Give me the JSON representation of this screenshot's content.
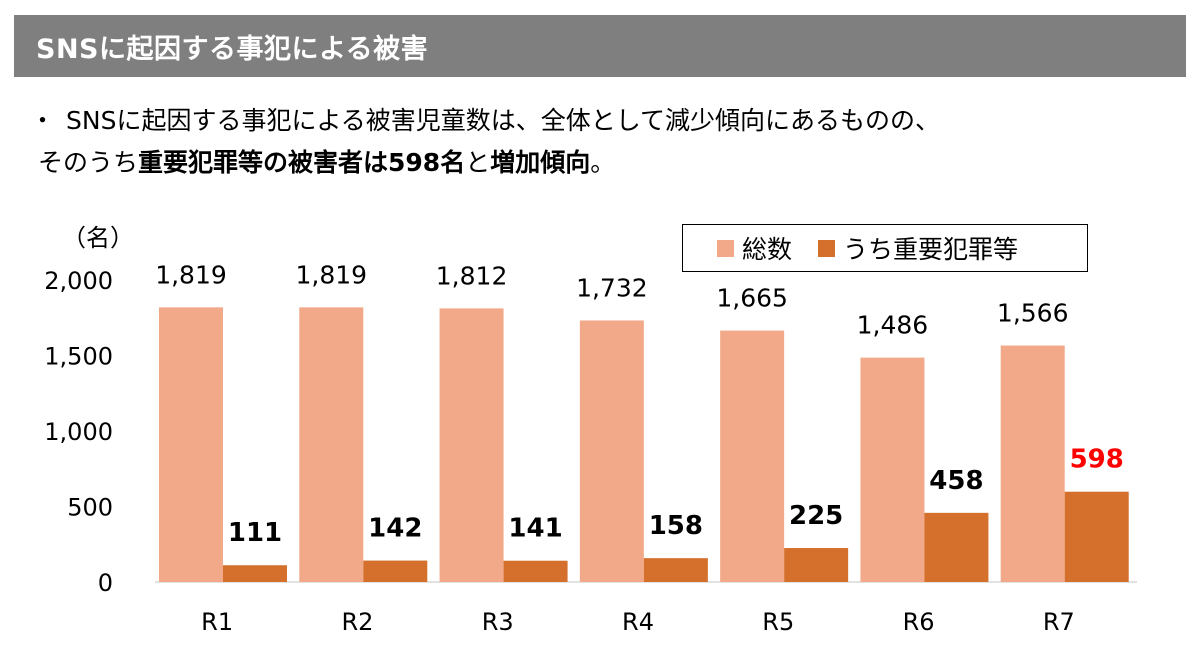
{
  "header": {
    "title": "SNSに起因する事犯による被害"
  },
  "summary": {
    "bullet": "・",
    "line1": "SNSに起因する事犯による被害児童数は、全体として減少傾向にあるものの、",
    "line2_a": "そのうち",
    "line2_b": "重要犯罪等の被害者は598名",
    "line2_c": "と",
    "line2_d": "増加傾向",
    "line2_e": "。"
  },
  "colors": {
    "total": "#f2a98a",
    "serious": "#d4702c",
    "highlight": "#ff0000",
    "axis": "#d9d9d9"
  },
  "chart_data": {
    "type": "bar",
    "unit_label": "（名）",
    "categories": [
      "R1",
      "R2",
      "R3",
      "R4",
      "R5",
      "R6",
      "R7"
    ],
    "series": [
      {
        "name": "総数",
        "values": [
          1819,
          1819,
          1812,
          1732,
          1665,
          1486,
          1566
        ],
        "labels": [
          "1,819",
          "1,819",
          "1,812",
          "1,732",
          "1,665",
          "1,486",
          "1,566"
        ]
      },
      {
        "name": "うち重要犯罪等",
        "values": [
          111,
          142,
          141,
          158,
          225,
          458,
          598
        ],
        "labels": [
          "111",
          "142",
          "141",
          "158",
          "225",
          "458",
          "598"
        ]
      }
    ],
    "yticks": [
      0,
      500,
      1000,
      1500,
      2000
    ],
    "ytick_labels": [
      "0",
      "500",
      "1,000",
      "1,500",
      "2,000"
    ],
    "ylim": [
      0,
      2000
    ],
    "legend": "top-right",
    "grid": false
  }
}
